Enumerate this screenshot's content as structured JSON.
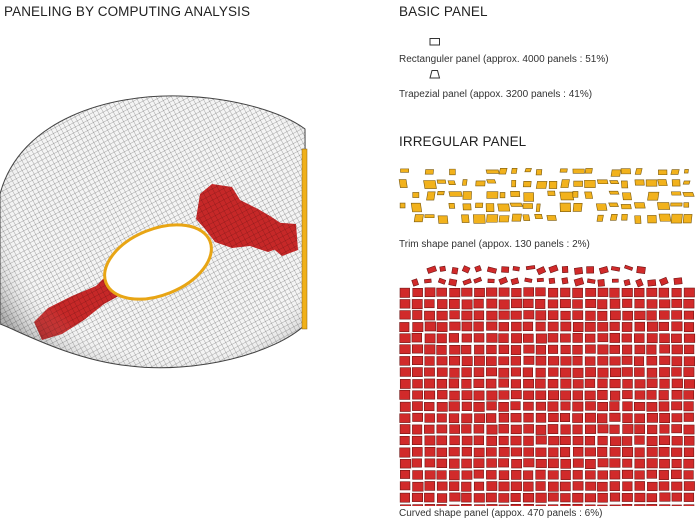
{
  "title": "PANELING BY COMPUTING ANALYSIS",
  "basic": {
    "heading": "BASIC PANEL",
    "rect_caption": "Rectanguler panel (approx. 4000 panels : 51%)",
    "trap_caption": "Trapezial panel (appox. 3200 panels : 41%)"
  },
  "irregular": {
    "heading": "IRREGULAR PANEL",
    "trim_caption": "Trim shape panel (appox. 130 panels : 2%)",
    "curved_caption": "Curved shape panel (appox. 470 panels : 6%)"
  },
  "colors": {
    "trim_panel": "#f2b21c",
    "trim_stroke": "#7a5a10",
    "curved_panel": "#d12a2a",
    "curved_stroke": "#6e1414",
    "surface": "#f4f4f4",
    "surface_grid": "#4a4a4a"
  }
}
